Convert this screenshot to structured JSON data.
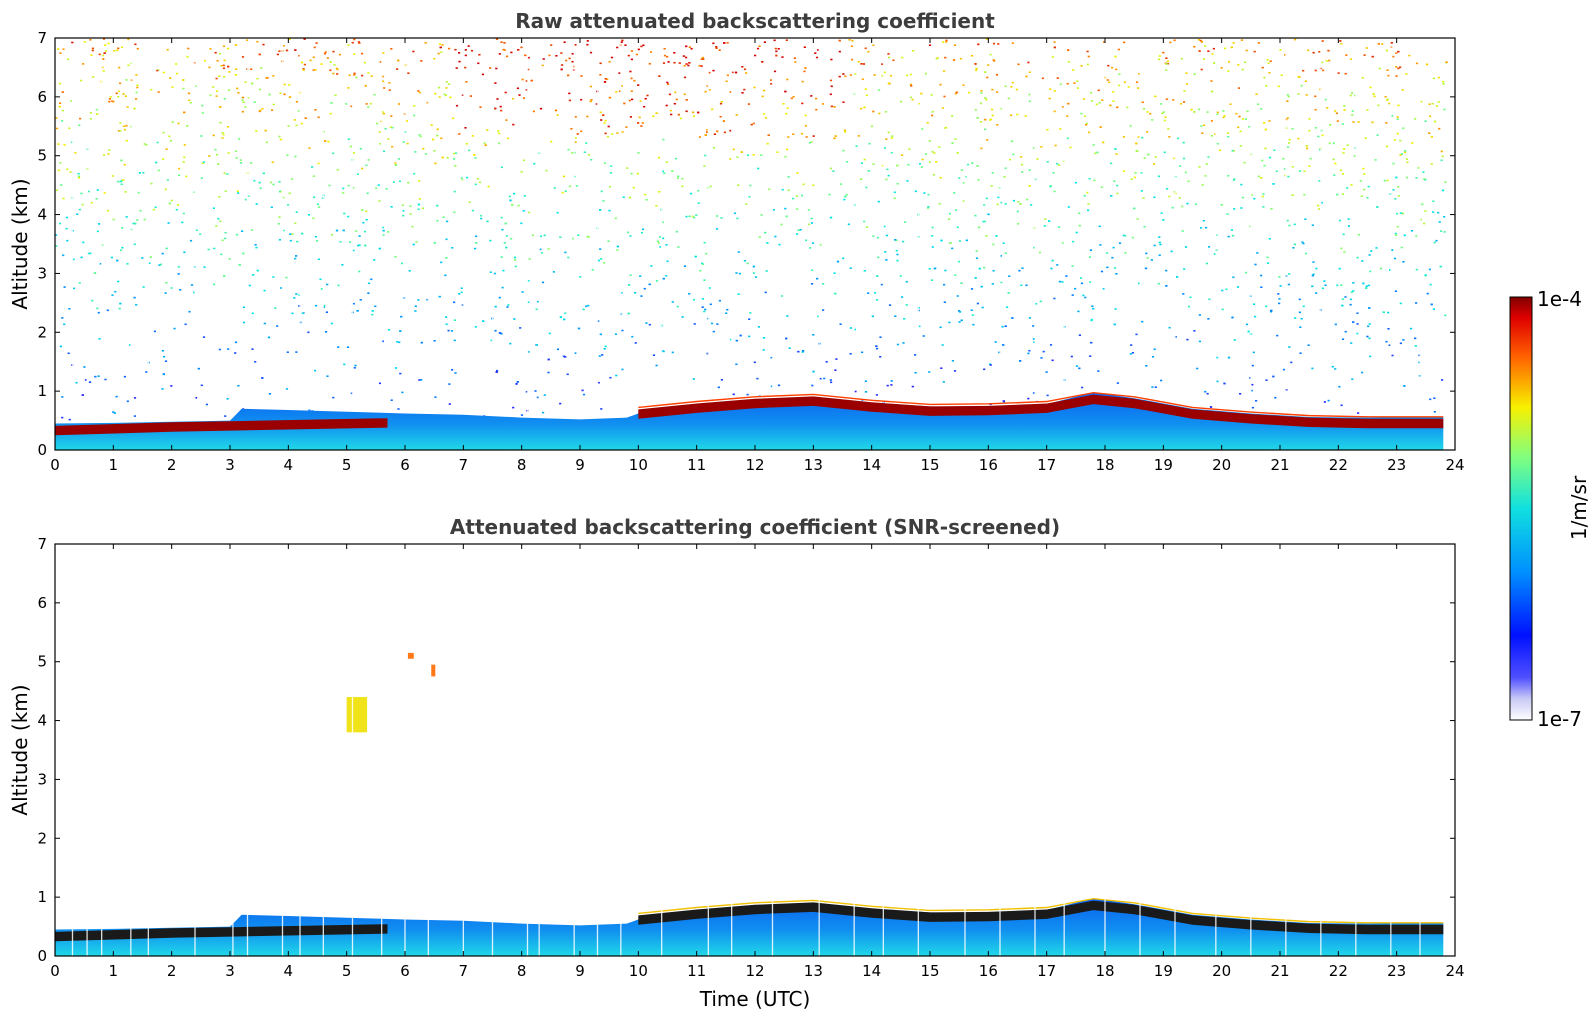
{
  "chart_data": [
    {
      "type": "heatmap",
      "title": "Raw attenuated backscattering coefficient",
      "ylabel": "Altitude (km)",
      "xlabel": "",
      "xlim": [
        0,
        24
      ],
      "ylim": [
        0,
        7
      ],
      "xticks": [
        "0",
        "1",
        "2",
        "3",
        "4",
        "5",
        "6",
        "7",
        "8",
        "9",
        "10",
        "11",
        "12",
        "13",
        "14",
        "15",
        "16",
        "17",
        "18",
        "19",
        "20",
        "21",
        "22",
        "23",
        "24"
      ],
      "yticks": [
        "0",
        "1",
        "2",
        "3",
        "4",
        "5",
        "6",
        "7"
      ],
      "colorscale": "jet",
      "boundary_layer_top_km": [
        {
          "x": 0,
          "y": 0.45
        },
        {
          "x": 1,
          "y": 0.46
        },
        {
          "x": 2,
          "y": 0.48
        },
        {
          "x": 3,
          "y": 0.5
        },
        {
          "x": 3.2,
          "y": 0.7
        },
        {
          "x": 4,
          "y": 0.68
        },
        {
          "x": 5,
          "y": 0.65
        },
        {
          "x": 6,
          "y": 0.62
        },
        {
          "x": 7,
          "y": 0.6
        },
        {
          "x": 8,
          "y": 0.55
        },
        {
          "x": 9,
          "y": 0.52
        },
        {
          "x": 9.8,
          "y": 0.55
        },
        {
          "x": 10,
          "y": 0.62
        },
        {
          "x": 11,
          "y": 0.72
        },
        {
          "x": 12,
          "y": 0.82
        },
        {
          "x": 13,
          "y": 0.9
        },
        {
          "x": 14,
          "y": 0.8
        },
        {
          "x": 15,
          "y": 0.74
        },
        {
          "x": 16,
          "y": 0.72
        },
        {
          "x": 17,
          "y": 0.78
        },
        {
          "x": 17.8,
          "y": 0.98
        },
        {
          "x": 18.5,
          "y": 0.88
        },
        {
          "x": 19.5,
          "y": 0.7
        },
        {
          "x": 20.5,
          "y": 0.62
        },
        {
          "x": 21.5,
          "y": 0.56
        },
        {
          "x": 22.5,
          "y": 0.55
        },
        {
          "x": 23.8,
          "y": 0.56
        }
      ],
      "strong_layer_km": [
        {
          "x": 0,
          "y": 0.32
        },
        {
          "x": 2,
          "y": 0.38
        },
        {
          "x": 3,
          "y": 0.4
        },
        {
          "x": 5.7,
          "y": 0.45
        },
        {
          "x": 10,
          "y": 0.6
        },
        {
          "x": 11,
          "y": 0.7
        },
        {
          "x": 12,
          "y": 0.78
        },
        {
          "x": 13,
          "y": 0.82
        },
        {
          "x": 14,
          "y": 0.72
        },
        {
          "x": 15,
          "y": 0.65
        },
        {
          "x": 16,
          "y": 0.66
        },
        {
          "x": 17,
          "y": 0.7
        },
        {
          "x": 17.8,
          "y": 0.85
        },
        {
          "x": 18.5,
          "y": 0.78
        },
        {
          "x": 19.5,
          "y": 0.6
        },
        {
          "x": 20.5,
          "y": 0.52
        },
        {
          "x": 21.5,
          "y": 0.46
        },
        {
          "x": 22.5,
          "y": 0.44
        },
        {
          "x": 23.8,
          "y": 0.44
        }
      ]
    },
    {
      "type": "heatmap",
      "title": "Attenuated backscattering coefficient (SNR-screened)",
      "ylabel": "Altitude (km)",
      "xlabel": "Time (UTC)",
      "xlim": [
        0,
        24
      ],
      "ylim": [
        0,
        7
      ],
      "xticks": [
        "0",
        "1",
        "2",
        "3",
        "4",
        "5",
        "6",
        "7",
        "8",
        "9",
        "10",
        "11",
        "12",
        "13",
        "14",
        "15",
        "16",
        "17",
        "18",
        "19",
        "20",
        "21",
        "22",
        "23",
        "24"
      ],
      "yticks": [
        "0",
        "1",
        "2",
        "3",
        "4",
        "5",
        "6",
        "7"
      ],
      "colorscale": "jet",
      "aerosol_layers": [
        {
          "x": 5.0,
          "x2": 5.35,
          "y": 3.8,
          "y2": 4.4
        },
        {
          "x": 6.05,
          "x2": 6.15,
          "y": 5.05,
          "y2": 5.15
        },
        {
          "x": 6.45,
          "x2": 6.52,
          "y": 4.75,
          "y2": 4.95
        }
      ]
    }
  ],
  "colorbar": {
    "top_label": "1e-4",
    "bottom_label": "1e-7",
    "unit": "1/m/sr"
  }
}
